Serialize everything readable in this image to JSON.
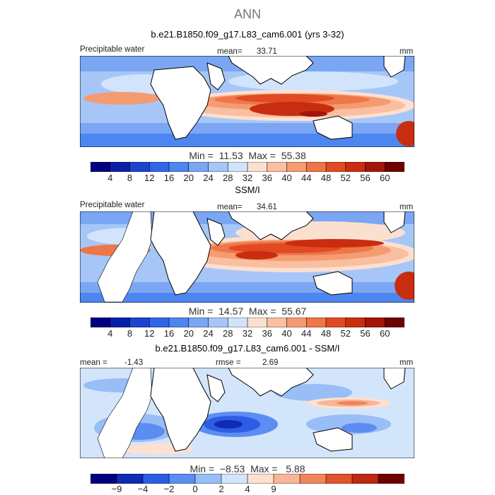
{
  "figure": {
    "season": "ANN"
  },
  "panels": [
    {
      "title": "b.e21.B1850.f09_g17.L83_cam6.001 (yrs 3-32)",
      "left_label": "Precipitable water",
      "center_label": "mean=",
      "center_value": "33.71",
      "right_label": "mm",
      "min_max": "Min =  11.53  Max =  55.38",
      "colorbar_labels": [
        "4",
        "8",
        "12",
        "16",
        "20",
        "24",
        "28",
        "32",
        "36",
        "40",
        "44",
        "48",
        "52",
        "56",
        "60"
      ]
    },
    {
      "title": "SSM/I",
      "left_label": "Precipitable water",
      "center_label": "mean=",
      "center_value": "34.61",
      "right_label": "mm",
      "min_max": "Min =  14.57  Max =  55.67",
      "colorbar_labels": [
        "4",
        "8",
        "12",
        "16",
        "20",
        "24",
        "28",
        "32",
        "36",
        "40",
        "44",
        "48",
        "52",
        "56",
        "60"
      ]
    },
    {
      "title": "b.e21.B1850.f09_g17.L83_cam6.001 - SSM/I",
      "left_label": "mean =",
      "left_value": "-1.43",
      "center_label": "rmse =",
      "center_value": "2.69",
      "right_label": "mm",
      "min_max": "Min =  −8.53  Max =   5.88",
      "colorbar_labels": [
        "−9",
        "−4",
        "−2",
        "0",
        "2",
        "4",
        "9"
      ]
    }
  ],
  "colors": {
    "abs_scale": [
      "#00007f",
      "#0a1fa8",
      "#1c43d0",
      "#2f66e8",
      "#4d86f0",
      "#7aa6f4",
      "#a6c6f8",
      "#d2e4fb",
      "#fce0cf",
      "#f9bfa0",
      "#f59b72",
      "#ee7648",
      "#e14a22",
      "#c92d10",
      "#a2150a",
      "#6e0000"
    ],
    "diff_scale": [
      "#00007f",
      "#0d2bb4",
      "#2c5de4",
      "#5c8df2",
      "#98bdf7",
      "#d3e5fb",
      "#fde0d0",
      "#f8b597",
      "#f0845a",
      "#e1542c",
      "#bf2710",
      "#6e0000"
    ],
    "land": "#ffffff",
    "coast": "#000000"
  }
}
